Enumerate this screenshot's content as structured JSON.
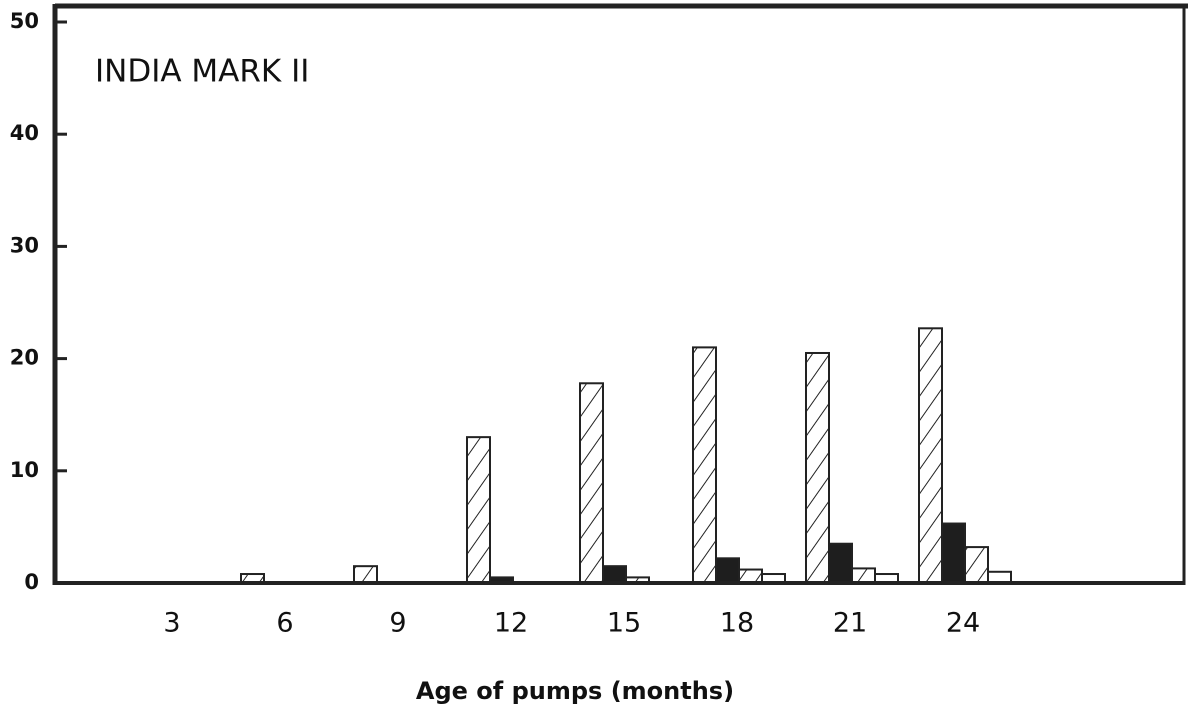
{
  "chart_data": {
    "type": "bar",
    "title": "INDIA MARK II",
    "x_label": "Age of pumps (months)",
    "categories": [
      "3",
      "6",
      "9",
      "12",
      "15",
      "18",
      "21",
      "24"
    ],
    "series": [
      {
        "color": "#ffffff",
        "hatch": true,
        "values": [
          0,
          0.8,
          1.5,
          13,
          17.8,
          21,
          20.5,
          22.7
        ]
      },
      {
        "color": "#1e1e1e",
        "hatch": false,
        "values": [
          0,
          0,
          0,
          0.5,
          1.5,
          2.2,
          3.5,
          5.3
        ]
      },
      {
        "color": "#ffffff",
        "hatch": true,
        "values": [
          0,
          0,
          0,
          0,
          0.5,
          1.2,
          1.3,
          3.2
        ]
      },
      {
        "color": "#ffffff",
        "hatch": false,
        "values": [
          0,
          0,
          0,
          0,
          0,
          0.8,
          0.8,
          1.0
        ]
      }
    ],
    "ylim": [
      0,
      50
    ],
    "yticks": [
      0,
      10,
      20,
      30,
      40,
      50
    ]
  }
}
